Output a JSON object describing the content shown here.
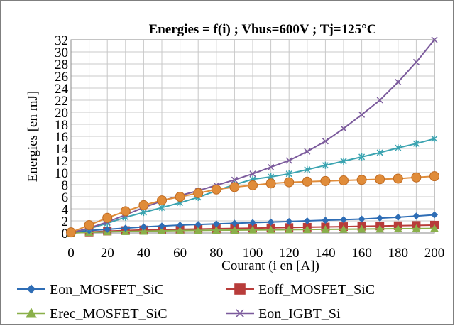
{
  "chart_data": {
    "type": "line",
    "title": "Energies = f(i) ; Vbus=600V ; Tj=125°C",
    "xlabel": "Courant (i en [A])",
    "ylabel": "Energies [en mJ]",
    "xlim": [
      0,
      200
    ],
    "ylim": [
      0,
      32
    ],
    "xticks": [
      0,
      20,
      40,
      60,
      80,
      100,
      120,
      140,
      160,
      180,
      200
    ],
    "yticks": [
      0,
      2,
      4,
      6,
      8,
      10,
      12,
      14,
      16,
      18,
      20,
      22,
      24,
      26,
      28,
      30,
      32
    ],
    "grid": true,
    "legend_position": "bottom",
    "x": [
      0,
      10,
      20,
      30,
      40,
      50,
      60,
      70,
      80,
      90,
      100,
      110,
      120,
      130,
      140,
      150,
      160,
      170,
      180,
      190,
      200
    ],
    "series": [
      {
        "name": "Eon_MOSFET_SiC",
        "color": "#2e6db5",
        "marker": "diamond",
        "values": [
          0.1,
          0.4,
          0.6,
          0.8,
          1.0,
          1.15,
          1.3,
          1.4,
          1.5,
          1.6,
          1.7,
          1.8,
          1.9,
          2.0,
          2.1,
          2.2,
          2.3,
          2.45,
          2.6,
          2.8,
          3.0
        ]
      },
      {
        "name": "Eoff_MOSFET_SiC",
        "color": "#b83c3a",
        "marker": "square",
        "values": [
          0.0,
          0.15,
          0.3,
          0.4,
          0.5,
          0.55,
          0.6,
          0.65,
          0.7,
          0.75,
          0.8,
          0.85,
          0.9,
          0.95,
          1.0,
          1.05,
          1.1,
          1.15,
          1.2,
          1.25,
          1.3
        ]
      },
      {
        "name": "Erec_MOSFET_SiC",
        "color": "#8ab04a",
        "marker": "triangle",
        "values": [
          0.0,
          0.1,
          0.2,
          0.25,
          0.3,
          0.35,
          0.4,
          0.42,
          0.45,
          0.47,
          0.5,
          0.52,
          0.55,
          0.57,
          0.6,
          0.62,
          0.65,
          0.67,
          0.7,
          0.72,
          0.75
        ]
      },
      {
        "name": "Eon_IGBT_Si",
        "color": "#7b5a9c",
        "marker": "x",
        "values": [
          0.0,
          0.8,
          1.8,
          3.0,
          4.2,
          5.3,
          6.2,
          7.0,
          7.9,
          8.8,
          9.8,
          10.9,
          12.0,
          13.5,
          15.2,
          17.3,
          19.6,
          22.0,
          25.0,
          28.3,
          32.0
        ]
      },
      {
        "name": "",
        "color": "#3aa3b0",
        "marker": "star",
        "values": [
          0.1,
          0.7,
          1.6,
          2.6,
          3.4,
          4.2,
          5.0,
          5.9,
          7.0,
          8.0,
          8.9,
          9.3,
          9.8,
          10.5,
          11.2,
          11.9,
          12.6,
          13.3,
          14.1,
          14.8,
          15.6
        ]
      },
      {
        "name": "",
        "color": "#e08c3a",
        "marker": "circle",
        "values": [
          0.1,
          1.3,
          2.5,
          3.6,
          4.6,
          5.4,
          6.0,
          6.6,
          7.2,
          7.6,
          7.9,
          8.2,
          8.4,
          8.5,
          8.6,
          8.7,
          8.8,
          8.9,
          9.0,
          9.2,
          9.4
        ]
      }
    ]
  }
}
